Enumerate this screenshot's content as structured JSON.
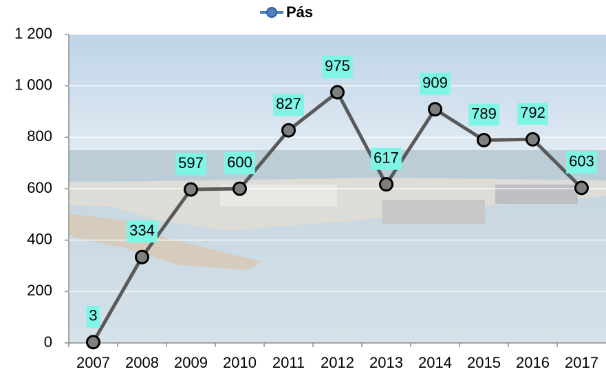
{
  "chart_data": {
    "type": "line",
    "categories": [
      "2007",
      "2008",
      "2009",
      "2010",
      "2011",
      "2012",
      "2013",
      "2014",
      "2015",
      "2016",
      "2017"
    ],
    "series": [
      {
        "name": "Pás",
        "color": "#595959",
        "values": [
          3,
          334,
          597,
          600,
          827,
          975,
          617,
          909,
          789,
          792,
          603
        ]
      }
    ],
    "ylim": [
      0,
      1200
    ],
    "yticks": [
      0,
      200,
      400,
      600,
      800,
      {
        "value": 1000,
        "label": "1 000"
      },
      {
        "value": 1200,
        "label": "1 200"
      }
    ],
    "grid": true,
    "legend": "top"
  }
}
